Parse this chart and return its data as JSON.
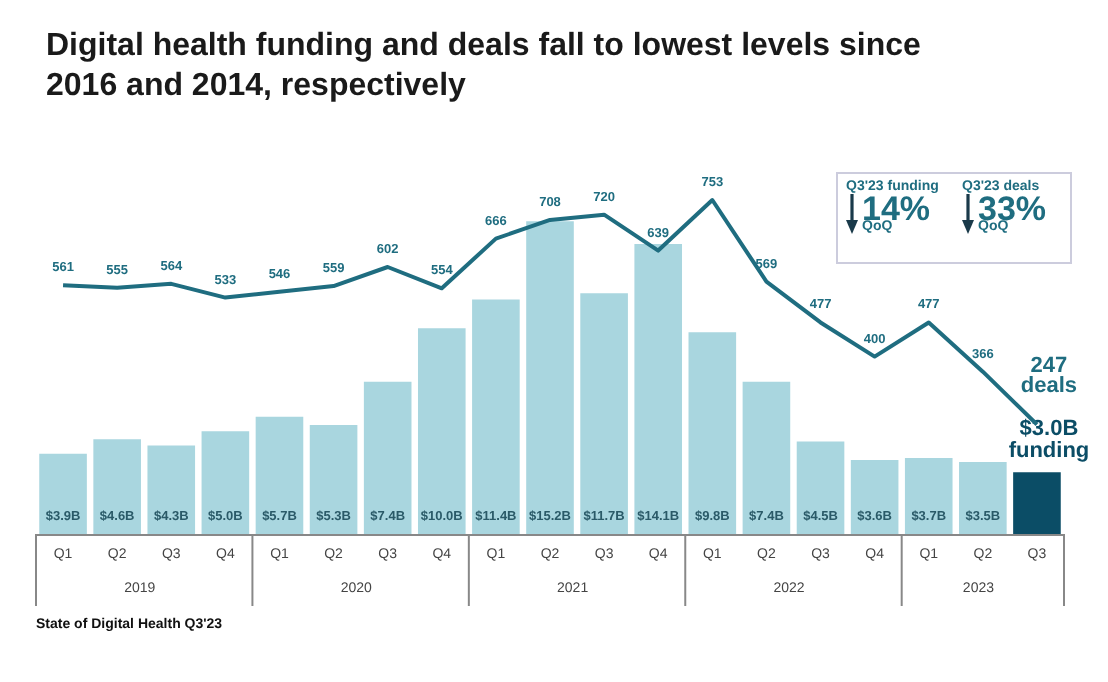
{
  "chart_data": {
    "type": "bar",
    "title": "Digital health funding and deals fall to lowest levels since 2016 and 2014, respectively",
    "categories": [
      "Q1",
      "Q2",
      "Q3",
      "Q4",
      "Q1",
      "Q2",
      "Q3",
      "Q4",
      "Q1",
      "Q2",
      "Q3",
      "Q4",
      "Q1",
      "Q2",
      "Q3",
      "Q4",
      "Q1",
      "Q2",
      "Q3"
    ],
    "series": [
      {
        "values": [
          3.9,
          4.6,
          4.3,
          5.0,
          5.7,
          5.3,
          7.4,
          10.0,
          11.4,
          15.2,
          11.7,
          14.1,
          9.8,
          7.4,
          4.5,
          3.6,
          3.7,
          3.5,
          3.0
        ],
        "colors": [
          "#a9d6df",
          "#a9d6df",
          "#a9d6df",
          "#a9d6df",
          "#a9d6df",
          "#a9d6df",
          "#a9d6df",
          "#a9d6df",
          "#a9d6df",
          "#a9d6df",
          "#a9d6df",
          "#a9d6df",
          "#a9d6df",
          "#a9d6df",
          "#a9d6df",
          "#a9d6df",
          "#a9d6df",
          "#a9d6df",
          "#0b4d66"
        ],
        "value_labels": [
          "$3.9B",
          "$4.6B",
          "$4.3B",
          "$5.0B",
          "$5.7B",
          "$5.3B",
          "$7.4B",
          "$10.0B",
          "$11.4B",
          "$15.2B",
          "$11.7B",
          "$14.1B",
          "$9.8B",
          "$7.4B",
          "$4.5B",
          "$3.6B",
          "$3.7B",
          "$3.5B",
          "$3.0B funding"
        ]
      },
      {
        "type": "line",
        "axis": "y2",
        "color": "#1f6d80",
        "values": [
          561,
          555,
          564,
          533,
          546,
          559,
          602,
          554,
          666,
          708,
          720,
          639,
          753,
          569,
          477,
          400,
          477,
          366,
          247
        ],
        "value_labels": [
          "561",
          "555",
          "564",
          "533",
          "546",
          "559",
          "602",
          "554",
          "666",
          "708",
          "720",
          "639",
          "753",
          "569",
          "477",
          "400",
          "477",
          "366",
          "247 deals"
        ]
      }
    ],
    "annotations": [
      "2019",
      "2020",
      "2021",
      "2022",
      "2023",
      "Q3'23 funding",
      "14%",
      "QoQ",
      "Q3'23 deals",
      "33%",
      "QoQ",
      "State of Digital Health Q3'23"
    ],
    "marker": "none"
  }
}
